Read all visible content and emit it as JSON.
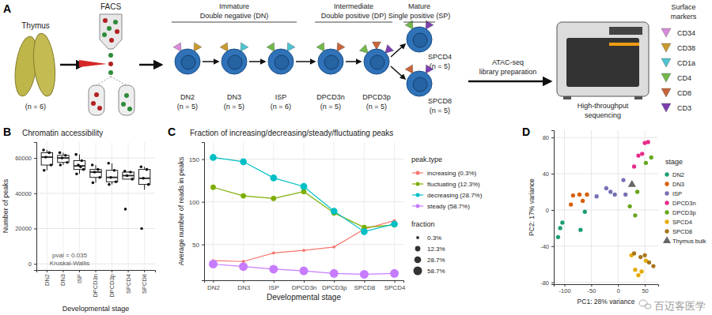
{
  "diagram": {
    "label": "A",
    "thymus": {
      "label": "Thymus",
      "n": "(n = 6)"
    },
    "facs": "FACS",
    "groups": [
      {
        "title": "Immature",
        "subtitle": "Double negative (DN)",
        "nodes": [
          {
            "label": "DN2",
            "n": "(n = 5)",
            "markers": [
              "CD34",
              "CD38"
            ]
          },
          {
            "label": "DN3",
            "n": "(n = 5)",
            "markers": [
              "CD38",
              "CD1a"
            ]
          },
          {
            "label": "ISP",
            "n": "(n = 6)",
            "markers": [
              "CD4",
              "CD1a"
            ]
          }
        ]
      },
      {
        "title": "Intermediate",
        "subtitle": "Double positive (DP)",
        "nodes": [
          {
            "label": "DPCD3n",
            "n": "(n = 5)",
            "markers": [
              "CD4",
              "CD8"
            ]
          },
          {
            "label": "DPCD3p",
            "n": "(n = 5)",
            "markers": [
              "CD4",
              "CD8",
              "CD3"
            ]
          }
        ]
      },
      {
        "title": "Mature",
        "subtitle": "Single positive (SP)",
        "nodes": [
          {
            "label": "SPCD4",
            "n": "(n = 5)",
            "markers": [
              "CD4",
              "CD3"
            ]
          },
          {
            "label": "SPCD8",
            "n": "(n = 5)",
            "markers": [
              "CD8",
              "CD3"
            ]
          }
        ]
      }
    ],
    "step": [
      "ATAC-seq",
      "library preparation"
    ],
    "sequencer": [
      "High-throughput",
      "sequencing"
    ],
    "markers_title": [
      "Surface",
      "markers"
    ],
    "markers": [
      {
        "name": "CD34",
        "color": "#d98bd9"
      },
      {
        "name": "CD38",
        "color": "#c99a2e"
      },
      {
        "name": "CD1a",
        "color": "#4fc3d0"
      },
      {
        "name": "CD4",
        "color": "#72b84a"
      },
      {
        "name": "CD8",
        "color": "#c8643a"
      },
      {
        "name": "CD3",
        "color": "#7d3fb0"
      }
    ]
  },
  "chart_data": [
    {
      "type": "box",
      "label": "B",
      "title": "Chromatin accessibility",
      "x_label": "Developmental stage",
      "y_label": "Number of peaks",
      "categories": [
        "DN2",
        "DN3",
        "ISP",
        "DPCD3n",
        "DPCD3p",
        "SPCD4",
        "SPCD8"
      ],
      "values": [
        {
          "min": 53000,
          "q1": 56000,
          "median": 60500,
          "q3": 63000,
          "max": 64500
        },
        {
          "min": 56000,
          "q1": 57500,
          "median": 60000,
          "q3": 61500,
          "max": 63000
        },
        {
          "min": 51000,
          "q1": 53500,
          "median": 55500,
          "q3": 58500,
          "max": 62000
        },
        {
          "min": 46000,
          "q1": 49000,
          "median": 52000,
          "q3": 53500,
          "max": 56000
        },
        {
          "min": 45000,
          "q1": 46500,
          "median": 49000,
          "q3": 53000,
          "max": 57000
        },
        {
          "min": 48000,
          "q1": 48000,
          "median": 50000,
          "q3": 52000,
          "max": 52500
        },
        {
          "min": 42000,
          "q1": 45000,
          "median": 48500,
          "q3": 53500,
          "max": 55000
        }
      ],
      "points": [
        [
          64500,
          63000,
          60500,
          56000,
          53000
        ],
        [
          63000,
          61500,
          60000,
          57500,
          56000
        ],
        [
          62000,
          58500,
          56000,
          53500,
          51000,
          55000
        ],
        [
          56000,
          53500,
          52000,
          49000,
          46000
        ],
        [
          57000,
          53000,
          49000,
          46500,
          45000
        ],
        [
          52500,
          52000,
          50000,
          48000,
          31000
        ],
        [
          55000,
          53500,
          48500,
          45000,
          20000
        ]
      ],
      "ylim": [
        -3500,
        69000
      ],
      "yticks": [
        0,
        20000,
        40000,
        60000
      ],
      "grid": true,
      "annotations": [
        "pval = 0.035",
        "Kruskal-Wallis"
      ]
    },
    {
      "type": "line",
      "label": "C",
      "title": "Fraction of increasing/decreasing/steady/fluctuating peaks",
      "x_label": "Developmental stage",
      "y_label": "Average number of reads in peaks",
      "categories": [
        "DN2",
        "DN3",
        "ISP",
        "DPCD3n",
        "DPCD3p",
        "SPCD8",
        "SPCD4"
      ],
      "series": [
        {
          "name": "increasing (0.3%)",
          "color": "#f8766d",
          "size": 0.3,
          "values": [
            31,
            30,
            40,
            43,
            47,
            68,
            78
          ]
        },
        {
          "name": "fluctuating (12.3%)",
          "color": "#7cae00",
          "size": 12.3,
          "values": [
            117,
            107,
            104,
            112,
            87,
            70,
            73
          ]
        },
        {
          "name": "decreasing (28.7%)",
          "color": "#00bfc4",
          "size": 28.7,
          "values": [
            152,
            147,
            128,
            118,
            89,
            65,
            74
          ]
        },
        {
          "name": "steady (58.7%)",
          "color": "#c77cff",
          "size": 58.7,
          "values": [
            27,
            24,
            21,
            19,
            16,
            15,
            16
          ]
        }
      ],
      "ylim": [
        8,
        170
      ],
      "yticks": [
        50,
        100,
        150
      ],
      "grid": true,
      "marker": "circle",
      "legend": "right",
      "legend_title": "peak.type",
      "size_legend": {
        "title": "fraction",
        "values": [
          {
            "value": 0.3,
            "label": "0.3%"
          },
          {
            "value": 12.3,
            "label": "12.3%"
          },
          {
            "value": 28.7,
            "label": "28.7%"
          },
          {
            "value": 58.7,
            "label": "58.7%"
          }
        ]
      }
    },
    {
      "type": "scatter",
      "label": "D",
      "x_label": "PC1: 28% variance",
      "y_label": "PC2: 17% variance",
      "series": [
        {
          "name": "DN2",
          "color": "#1b9e77",
          "marker": "circle",
          "x": [
            -112,
            -108,
            -104,
            -70,
            -62
          ],
          "values": [
            -30,
            -20,
            -14,
            -22,
            -2
          ]
        },
        {
          "name": "DN3",
          "color": "#d95f02",
          "marker": "circle",
          "x": [
            -88,
            -84,
            -72,
            -66,
            -58
          ],
          "values": [
            6,
            16,
            17,
            10,
            17
          ]
        },
        {
          "name": "ISP",
          "color": "#7570b3",
          "marker": "circle",
          "x": [
            -40,
            -22,
            -14,
            -6,
            10,
            14
          ],
          "values": [
            15,
            24,
            20,
            17,
            33,
            17
          ]
        },
        {
          "name": "DPCD3n",
          "color": "#e7298a",
          "marker": "circle",
          "x": [
            30,
            38,
            45,
            50,
            56
          ],
          "values": [
            48,
            60,
            62,
            74,
            75
          ]
        },
        {
          "name": "DPCD3p",
          "color": "#66a61e",
          "marker": "circle",
          "x": [
            22,
            32,
            36,
            52,
            62
          ],
          "values": [
            4,
            -6,
            20,
            52,
            58
          ]
        },
        {
          "name": "SPCD4",
          "color": "#e6ab02",
          "marker": "circle",
          "x": [
            25,
            32,
            38,
            44,
            52
          ],
          "values": [
            -50,
            -66,
            -72,
            -68,
            -56
          ]
        },
        {
          "name": "SPCD8",
          "color": "#a6761d",
          "marker": "circle",
          "x": [
            30,
            42,
            50,
            58,
            66
          ],
          "values": [
            -48,
            -52,
            -50,
            -58,
            -62
          ]
        },
        {
          "name": "Thymus bulk",
          "color": "#666666",
          "marker": "triangle",
          "x": [
            26
          ],
          "values": [
            28
          ]
        }
      ],
      "xlim": [
        -120,
        75
      ],
      "xticks": [
        -100,
        -50,
        0,
        50
      ],
      "ylim": [
        -82,
        88
      ],
      "yticks": [
        -80,
        -40,
        0,
        40,
        80
      ],
      "grid": true,
      "legend": "right",
      "legend_title": "stage"
    }
  ],
  "watermark": "百迈客医学"
}
